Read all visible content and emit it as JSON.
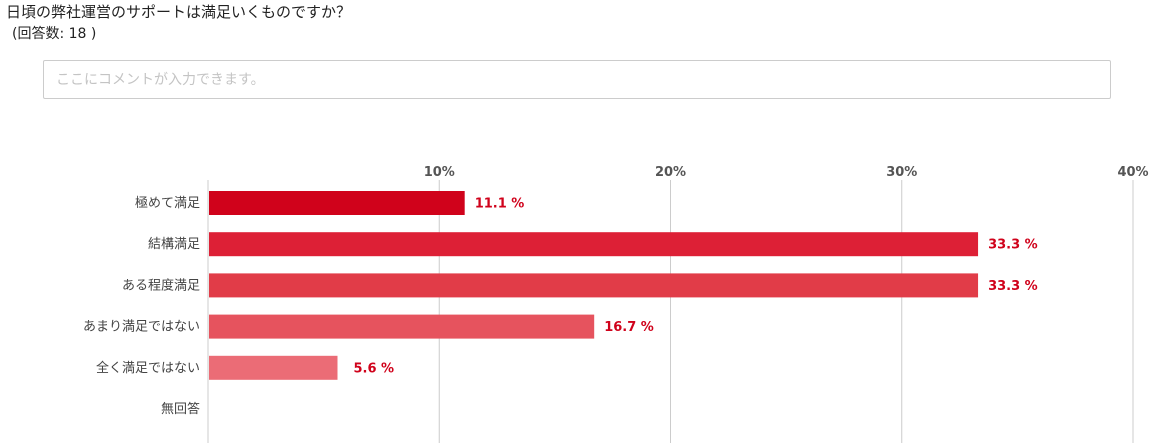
{
  "question": {
    "title": "日頃の弊社運営のサポートは満足いくものですか？",
    "answer_count": "(回答数: 18 )"
  },
  "comment": {
    "placeholder": "ここにコメントが入力できます。"
  },
  "colors": {
    "grid": "#cccccc",
    "axis_label": "#555555",
    "category_label": "#444444",
    "value_label": "#d0021b",
    "bars": [
      "#d0021b",
      "#dd2036",
      "#e13c48",
      "#e6535e",
      "#eb6c76",
      "#f08a92"
    ]
  },
  "chart_data": {
    "type": "bar",
    "orientation": "horizontal",
    "categories": [
      "極めて満足",
      "結構満足",
      "ある程度満足",
      "あまり満足ではない",
      "全く満足ではない",
      "無回答"
    ],
    "values": [
      11.1,
      33.3,
      33.3,
      16.7,
      5.6,
      0
    ],
    "value_labels": [
      "11.1 %",
      "33.3 %",
      "33.3 %",
      "16.7 %",
      "5.6 %",
      ""
    ],
    "xlim": [
      0,
      40
    ],
    "ticks": [
      10,
      20,
      30,
      40
    ],
    "tick_labels": [
      "10%",
      "20%",
      "30%",
      "40%"
    ],
    "axis_position": "top",
    "grid": true
  }
}
